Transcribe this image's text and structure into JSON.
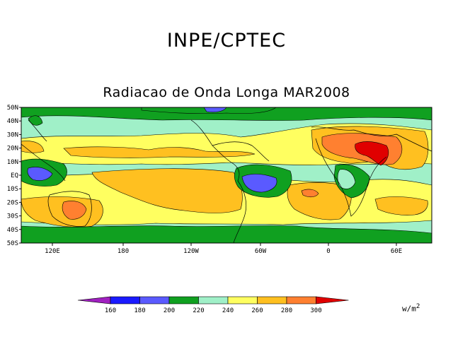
{
  "chart_data": {
    "type": "heatmap",
    "title": "INPE/CPTEC",
    "subtitle": "Radiacao de Onda Longa MAR2008",
    "unit_label": "w/m",
    "unit_exponent": "2",
    "x_ticks": [
      "120E",
      "180",
      "120W",
      "60W",
      "0",
      "60E"
    ],
    "y_ticks": [
      "50N",
      "40N",
      "30N",
      "20N",
      "10N",
      "EQ",
      "10S",
      "20S",
      "30S",
      "40S",
      "50S"
    ],
    "colorbar": {
      "levels": [
        "160",
        "180",
        "200",
        "220",
        "240",
        "260",
        "280",
        "300"
      ],
      "colors": [
        "#a020c0",
        "#1a1aff",
        "#5a5aff",
        "#10a020",
        "#a0f0c8",
        "#ffff60",
        "#ffc020",
        "#ff8030",
        "#e00000"
      ]
    },
    "colors": {
      "c180": "#5a5aff",
      "c200": "#10a020",
      "c220": "#a0f0c8",
      "c240": "#ffff60",
      "c260": "#ffc020",
      "c280": "#ff8030",
      "c300": "#e00000",
      "c160": "#1a1aff"
    }
  }
}
